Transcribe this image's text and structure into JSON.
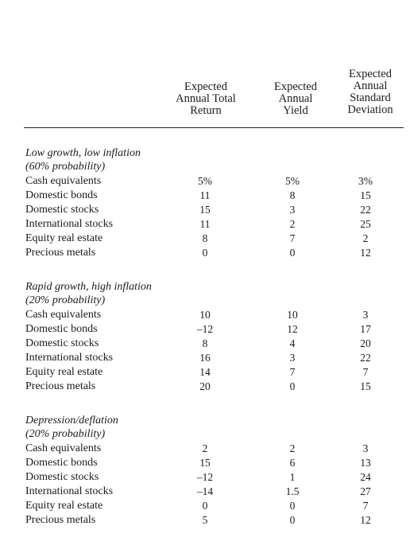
{
  "headers": {
    "total_return": [
      "Expected",
      "Annual Total",
      "Return"
    ],
    "yield": [
      "Expected",
      "Annual",
      "Yield"
    ],
    "std_dev": [
      "Expected",
      "Annual",
      "Standard",
      "Deviation"
    ]
  },
  "sections": [
    {
      "title_line1": "Low growth, low inflation",
      "title_line2": "(60% probability)",
      "rows": [
        {
          "label": "Cash equivalents",
          "total": "5%",
          "yield": "5%",
          "sd": "3%"
        },
        {
          "label": "Domestic bonds",
          "total": "11",
          "yield": "8",
          "sd": "15"
        },
        {
          "label": "Domestic stocks",
          "total": "15",
          "yield": "3",
          "sd": "22"
        },
        {
          "label": "International stocks",
          "total": "11",
          "yield": "2",
          "sd": "25"
        },
        {
          "label": "Equity real estate",
          "total": "8",
          "yield": "7",
          "sd": "2"
        },
        {
          "label": "Precious metals",
          "total": "0",
          "yield": "0",
          "sd": "12"
        }
      ]
    },
    {
      "title_line1": "Rapid growth, high inflation",
      "title_line2": "(20% probability)",
      "rows": [
        {
          "label": "Cash equivalents",
          "total": "10",
          "yield": "10",
          "sd": "3"
        },
        {
          "label": "Domestic bonds",
          "total": "–12",
          "yield": "12",
          "sd": "17"
        },
        {
          "label": "Domestic stocks",
          "total": "8",
          "yield": "4",
          "sd": "20"
        },
        {
          "label": "International stocks",
          "total": "16",
          "yield": "3",
          "sd": "22"
        },
        {
          "label": "Equity real estate",
          "total": "14",
          "yield": "7",
          "sd": "7"
        },
        {
          "label": "Precious metals",
          "total": "20",
          "yield": "0",
          "sd": "15"
        }
      ]
    },
    {
      "title_line1": "Depression/deflation",
      "title_line2": "(20% probability)",
      "rows": [
        {
          "label": "Cash equivalents",
          "total": "2",
          "yield": "2",
          "sd": "3"
        },
        {
          "label": "Domestic bonds",
          "total": "15",
          "yield": "6",
          "sd": "13"
        },
        {
          "label": "Domestic stocks",
          "total": "–12",
          "yield": "1",
          "sd": "24"
        },
        {
          "label": "International stocks",
          "total": "–14",
          "yield": "1.5",
          "sd": "27"
        },
        {
          "label": "Equity real estate",
          "total": "0",
          "yield": "0",
          "sd": "7"
        },
        {
          "label": "Precious metals",
          "total": "5",
          "yield": "0",
          "sd": "12"
        }
      ]
    }
  ]
}
